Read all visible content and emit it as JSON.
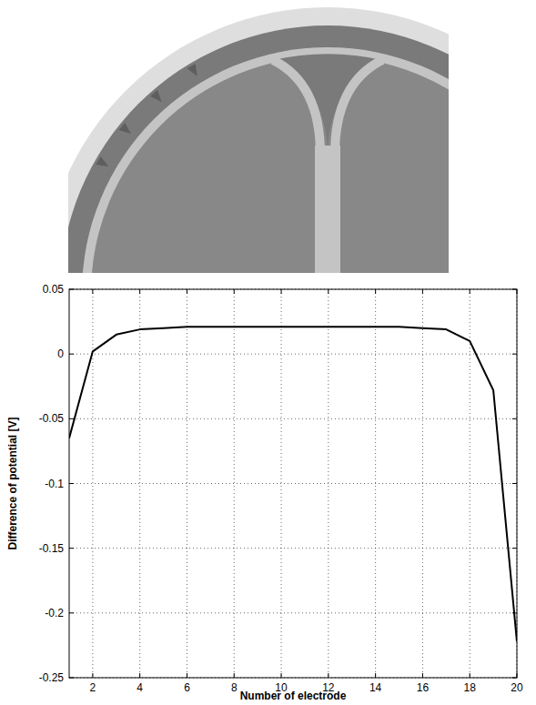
{
  "chart_data": {
    "type": "line",
    "x_label": "Number of electrode",
    "y_label": "Difference of potential [V]",
    "x": [
      1,
      2,
      3,
      4,
      5,
      6,
      7,
      8,
      9,
      10,
      11,
      12,
      13,
      14,
      15,
      16,
      17,
      18,
      19,
      20
    ],
    "values": [
      -0.065,
      0.002,
      0.015,
      0.019,
      0.02,
      0.021,
      0.021,
      0.021,
      0.021,
      0.021,
      0.021,
      0.021,
      0.021,
      0.021,
      0.021,
      0.02,
      0.019,
      0.01,
      -0.028,
      -0.222
    ],
    "color": "#000000",
    "line_style": "solid",
    "xlim": [
      1,
      20
    ],
    "xticks": [
      2,
      4,
      6,
      8,
      10,
      12,
      14,
      16,
      18,
      20
    ],
    "ylim": [
      -0.25,
      0.05
    ],
    "yticks": [
      -0.25,
      -0.2,
      -0.15,
      -0.1,
      -0.05,
      0,
      0.05
    ],
    "grid": true
  }
}
